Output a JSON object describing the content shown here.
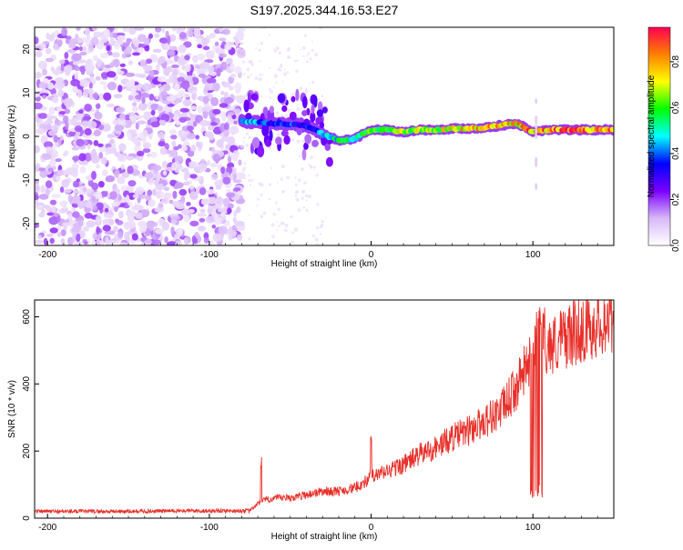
{
  "title": "S197.2025.344.16.53.E27",
  "colorbar": {
    "label": "Normalized spectral amplitude",
    "ticks": [
      "0.0",
      "0.2",
      "0.4",
      "0.6",
      "0.8"
    ],
    "tick_values": [
      0.0,
      0.2,
      0.4,
      0.6,
      0.8
    ],
    "range": [
      0.0,
      0.95
    ],
    "stops": [
      "#ffffff",
      "#d8b8f8",
      "#7a00ff",
      "#0000ff",
      "#00ffff",
      "#00ff00",
      "#ffff00",
      "#ff8000",
      "#ff0050"
    ]
  },
  "chart_data": [
    {
      "type": "heatmap",
      "title": "S197.2025.344.16.53.E27",
      "xlabel": "Height of straight line (km)",
      "ylabel": "Frequency (Hz)",
      "xlim": [
        -208,
        150
      ],
      "ylim": [
        -25,
        25
      ],
      "xticks": [
        -200,
        -100,
        0,
        100
      ],
      "xtick_labels": [
        "-200",
        "-100",
        "0",
        "100"
      ],
      "yticks": [
        -20,
        -10,
        0,
        10,
        20
      ],
      "ytick_labels": [
        "-20",
        "-10",
        "0",
        "10",
        "20"
      ],
      "noise_region": {
        "x_from": -208,
        "x_to": -80
      },
      "ridge": {
        "x": [
          -80,
          -70,
          -60,
          -50,
          -40,
          -30,
          -20,
          -10,
          0,
          10,
          20,
          30,
          40,
          50,
          60,
          70,
          80,
          90,
          100,
          110,
          120,
          130,
          140,
          150
        ],
        "freq": [
          3.5,
          3.2,
          3.0,
          2.8,
          2.5,
          0.5,
          -1.0,
          -0.5,
          1.5,
          1.5,
          1.0,
          1.5,
          1.5,
          1.8,
          1.8,
          2.0,
          2.5,
          3.0,
          1.0,
          1.5,
          1.5,
          1.5,
          1.5,
          1.5
        ],
        "amplitude": [
          0.5,
          0.45,
          0.4,
          0.4,
          0.35,
          0.45,
          0.55,
          0.6,
          0.65,
          0.7,
          0.75,
          0.7,
          0.75,
          0.75,
          0.8,
          0.8,
          0.85,
          0.8,
          0.9,
          0.85,
          0.9,
          0.9,
          0.9,
          0.9
        ]
      }
    },
    {
      "type": "line",
      "xlabel": "Height of straight line (km)",
      "ylabel": "SNR (10 * v/v)",
      "xlim": [
        -208,
        150
      ],
      "ylim": [
        0,
        650
      ],
      "xticks": [
        -200,
        -100,
        0,
        100
      ],
      "xtick_labels": [
        "-200",
        "-100",
        "0",
        "100"
      ],
      "yticks": [
        0,
        200,
        400,
        600
      ],
      "ytick_labels": [
        "0",
        "200",
        "400",
        "600"
      ],
      "color": "#e8302a",
      "series": [
        {
          "name": "SNR",
          "x": [
            -208,
            -180,
            -150,
            -120,
            -90,
            -75,
            -68,
            -60,
            -50,
            -40,
            -30,
            -20,
            -10,
            0,
            10,
            20,
            30,
            40,
            50,
            60,
            70,
            80,
            90,
            95,
            100,
            103,
            105,
            110,
            120,
            130,
            140,
            150
          ],
          "y": [
            20,
            20,
            20,
            22,
            22,
            22,
            50,
            60,
            60,
            70,
            80,
            80,
            90,
            120,
            140,
            160,
            190,
            210,
            240,
            260,
            290,
            320,
            390,
            440,
            480,
            80,
            560,
            510,
            540,
            560,
            580,
            600
          ]
        }
      ]
    }
  ]
}
